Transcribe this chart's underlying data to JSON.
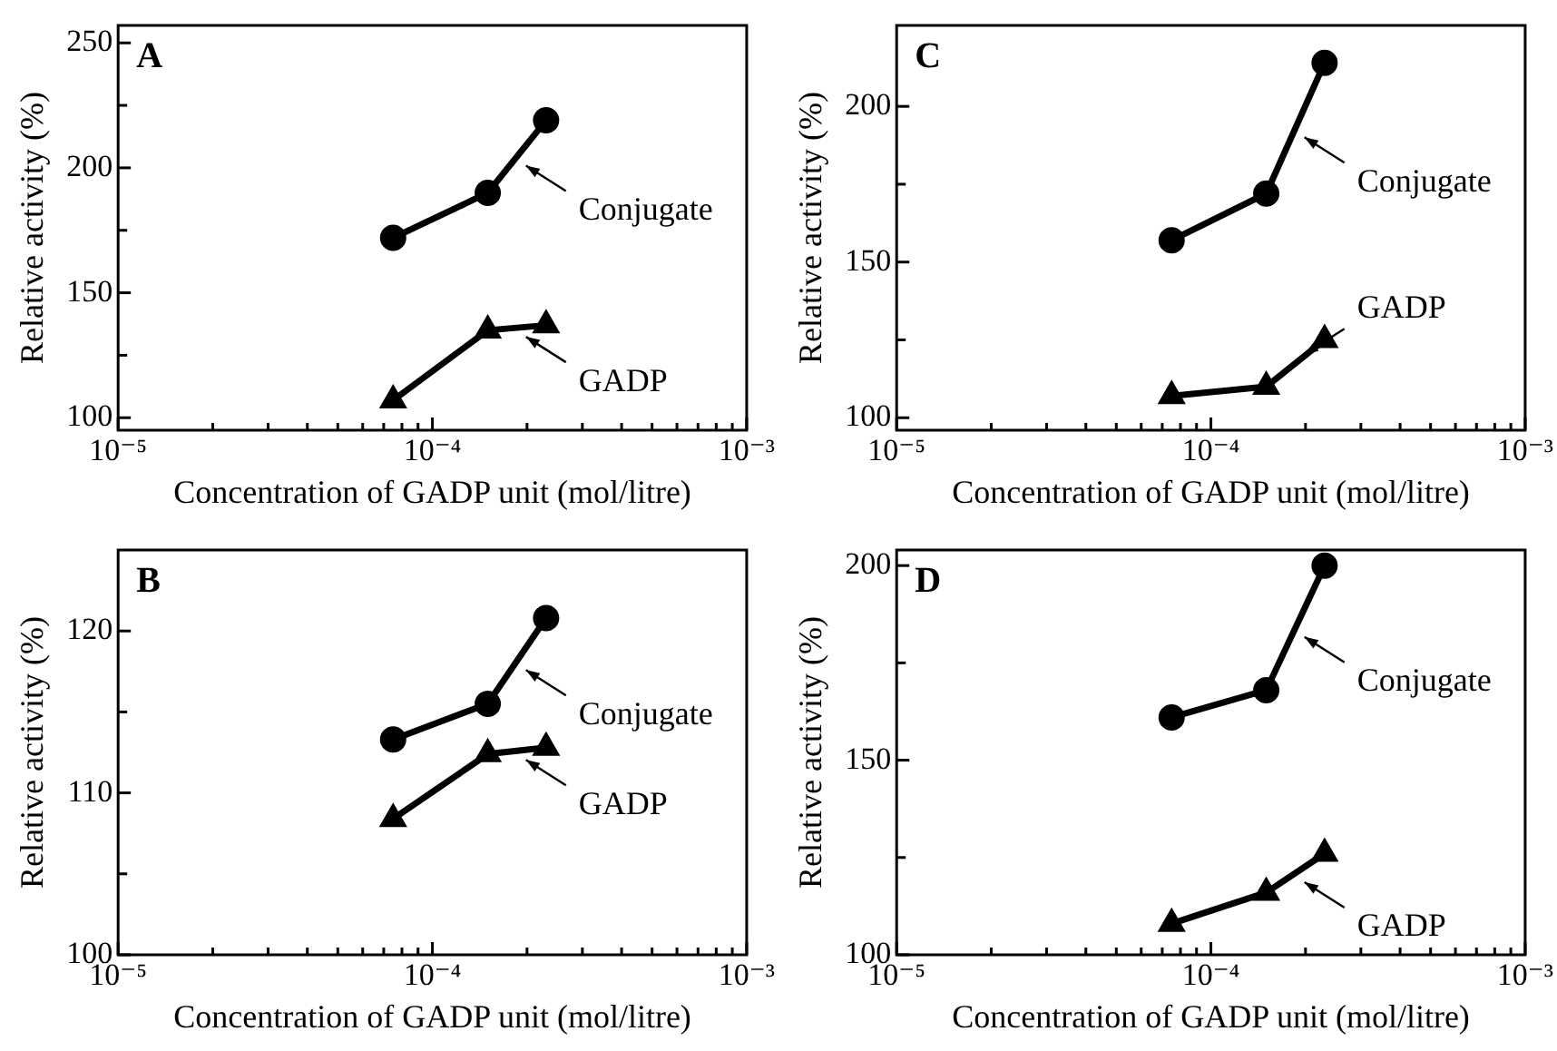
{
  "chart_data": [
    {
      "type": "line",
      "title": "A",
      "legend": "right",
      "xlabel": "Concentration of GADP unit (mol/litre)",
      "ylabel": "Relative activity (%)",
      "log": "x",
      "xlim": [
        1e-05,
        0.001
      ],
      "ylim": [
        95,
        257
      ],
      "xticks": [
        {
          "value": 1e-05,
          "label": "10⁻⁵"
        },
        {
          "value": 2e-05,
          "label": null
        },
        {
          "value": 3e-05,
          "label": null
        },
        {
          "value": 4e-05,
          "label": null
        },
        {
          "value": 5e-05,
          "label": null
        },
        {
          "value": 6e-05,
          "label": null
        },
        {
          "value": 7e-05,
          "label": null
        },
        {
          "value": 8e-05,
          "label": null
        },
        {
          "value": 9e-05,
          "label": null
        },
        {
          "value": 0.0001,
          "label": "10⁻⁴"
        },
        {
          "value": 0.0002,
          "label": null
        },
        {
          "value": 0.0003,
          "label": null
        },
        {
          "value": 0.0004,
          "label": null
        },
        {
          "value": 0.0005,
          "label": null
        },
        {
          "value": 0.0006,
          "label": null
        },
        {
          "value": 0.0007,
          "label": null
        },
        {
          "value": 0.0008,
          "label": null
        },
        {
          "value": 0.0009,
          "label": null
        },
        {
          "value": 0.001,
          "label": "10⁻³"
        }
      ],
      "yticks": [
        100,
        {
          "value": 125,
          "label": null
        },
        150,
        {
          "value": 175,
          "label": null
        },
        200,
        {
          "value": 225,
          "label": null
        },
        250
      ],
      "x": [
        7.5e-05,
        0.00015,
        0.00023
      ],
      "series": [
        {
          "name": "Conjugate",
          "color": "#000000",
          "marker": "circle",
          "values": [
            172,
            190,
            219
          ]
        },
        {
          "name": "GADP",
          "color": "#000000",
          "marker": "triangle",
          "values": [
            107,
            135,
            137
          ]
        }
      ]
    },
    {
      "type": "line",
      "title": "C",
      "legend": "right",
      "xlabel": "Concentration of GADP unit (mol/litre)",
      "ylabel": "Relative activity (%)",
      "log": "x",
      "xlim": [
        1e-05,
        0.001
      ],
      "ylim": [
        96,
        226
      ],
      "xticks": [
        {
          "value": 1e-05,
          "label": "10⁻⁵"
        },
        {
          "value": 2e-05,
          "label": null
        },
        {
          "value": 3e-05,
          "label": null
        },
        {
          "value": 4e-05,
          "label": null
        },
        {
          "value": 5e-05,
          "label": null
        },
        {
          "value": 6e-05,
          "label": null
        },
        {
          "value": 7e-05,
          "label": null
        },
        {
          "value": 8e-05,
          "label": null
        },
        {
          "value": 9e-05,
          "label": null
        },
        {
          "value": 0.0001,
          "label": "10⁻⁴"
        },
        {
          "value": 0.0002,
          "label": null
        },
        {
          "value": 0.0003,
          "label": null
        },
        {
          "value": 0.0004,
          "label": null
        },
        {
          "value": 0.0005,
          "label": null
        },
        {
          "value": 0.0006,
          "label": null
        },
        {
          "value": 0.0007,
          "label": null
        },
        {
          "value": 0.0008,
          "label": null
        },
        {
          "value": 0.0009,
          "label": null
        },
        {
          "value": 0.001,
          "label": "10⁻³"
        }
      ],
      "yticks": [
        100,
        {
          "value": 125,
          "label": null
        },
        150,
        {
          "value": 175,
          "label": null
        },
        200
      ],
      "x": [
        7.5e-05,
        0.00015,
        0.00023
      ],
      "series": [
        {
          "name": "Conjugate",
          "color": "#000000",
          "marker": "circle",
          "values": [
            157,
            172,
            214
          ]
        },
        {
          "name": "GADP",
          "color": "#000000",
          "marker": "triangle",
          "values": [
            107,
            110,
            125
          ]
        }
      ]
    },
    {
      "type": "line",
      "title": "B",
      "legend": "right",
      "xlabel": "Concentration of GADP unit (mol/litre)",
      "ylabel": "Relative activity (%)",
      "log": "x",
      "xlim": [
        1e-05,
        0.001
      ],
      "ylim": [
        100,
        125
      ],
      "xticks": [
        {
          "value": 1e-05,
          "label": "10⁻⁵"
        },
        {
          "value": 2e-05,
          "label": null
        },
        {
          "value": 3e-05,
          "label": null
        },
        {
          "value": 4e-05,
          "label": null
        },
        {
          "value": 5e-05,
          "label": null
        },
        {
          "value": 6e-05,
          "label": null
        },
        {
          "value": 7e-05,
          "label": null
        },
        {
          "value": 8e-05,
          "label": null
        },
        {
          "value": 9e-05,
          "label": null
        },
        {
          "value": 0.0001,
          "label": "10⁻⁴"
        },
        {
          "value": 0.0002,
          "label": null
        },
        {
          "value": 0.0003,
          "label": null
        },
        {
          "value": 0.0004,
          "label": null
        },
        {
          "value": 0.0005,
          "label": null
        },
        {
          "value": 0.0006,
          "label": null
        },
        {
          "value": 0.0007,
          "label": null
        },
        {
          "value": 0.0008,
          "label": null
        },
        {
          "value": 0.0009,
          "label": null
        },
        {
          "value": 0.001,
          "label": "10⁻³"
        }
      ],
      "yticks": [
        100,
        {
          "value": 105,
          "label": null
        },
        110,
        {
          "value": 115,
          "label": null
        },
        120
      ],
      "x": [
        7.5e-05,
        0.00015,
        0.00023
      ],
      "series": [
        {
          "name": "Conjugate",
          "color": "#000000",
          "marker": "circle",
          "values": [
            113.3,
            115.5,
            120.8
          ]
        },
        {
          "name": "GADP",
          "color": "#000000",
          "marker": "triangle",
          "values": [
            108.4,
            112.4,
            112.8
          ]
        }
      ]
    },
    {
      "type": "line",
      "title": "D",
      "legend": "right",
      "xlabel": "Concentration of GADP unit (mol/litre)",
      "ylabel": "Relative activity (%)",
      "log": "x",
      "xlim": [
        1e-05,
        0.001
      ],
      "ylim": [
        100,
        204
      ],
      "xticks": [
        {
          "value": 1e-05,
          "label": "10⁻⁵"
        },
        {
          "value": 2e-05,
          "label": null
        },
        {
          "value": 3e-05,
          "label": null
        },
        {
          "value": 4e-05,
          "label": null
        },
        {
          "value": 5e-05,
          "label": null
        },
        {
          "value": 6e-05,
          "label": null
        },
        {
          "value": 7e-05,
          "label": null
        },
        {
          "value": 8e-05,
          "label": null
        },
        {
          "value": 9e-05,
          "label": null
        },
        {
          "value": 0.0001,
          "label": "10⁻⁴"
        },
        {
          "value": 0.0002,
          "label": null
        },
        {
          "value": 0.0003,
          "label": null
        },
        {
          "value": 0.0004,
          "label": null
        },
        {
          "value": 0.0005,
          "label": null
        },
        {
          "value": 0.0006,
          "label": null
        },
        {
          "value": 0.0007,
          "label": null
        },
        {
          "value": 0.0008,
          "label": null
        },
        {
          "value": 0.0009,
          "label": null
        },
        {
          "value": 0.001,
          "label": "10⁻³"
        }
      ],
      "yticks": [
        100,
        {
          "value": 125,
          "label": null
        },
        150,
        {
          "value": 175,
          "label": null
        },
        200
      ],
      "x": [
        7.5e-05,
        0.00015,
        0.00023
      ],
      "series": [
        {
          "name": "Conjugate",
          "color": "#000000",
          "marker": "circle",
          "values": [
            161,
            168,
            200
          ]
        },
        {
          "name": "GADP",
          "color": "#000000",
          "marker": "triangle",
          "values": [
            108,
            116,
            126
          ]
        }
      ]
    }
  ]
}
